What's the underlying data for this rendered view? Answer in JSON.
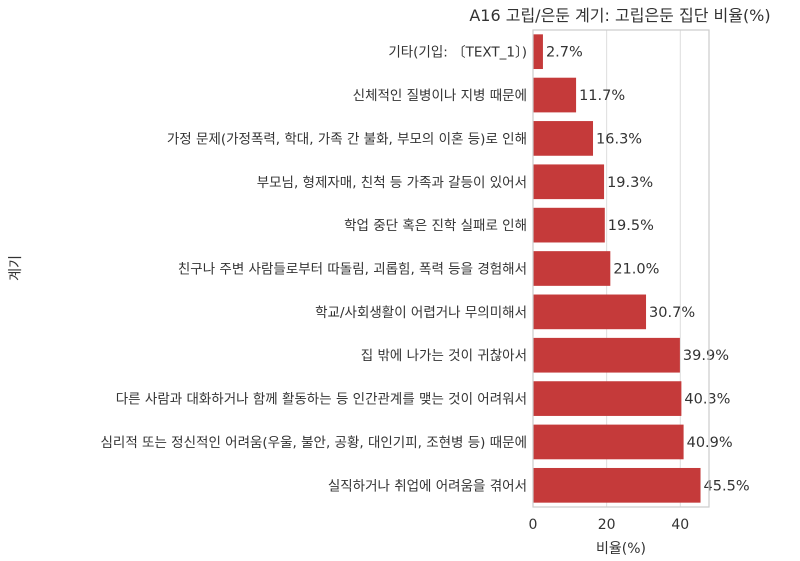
{
  "chart_data": {
    "type": "bar",
    "orientation": "horizontal",
    "title": "A16 고립/은둔 계기: 고립은둔 집단 비율(%)",
    "xlabel": "비율(%)",
    "ylabel": "계기",
    "xlim": [
      0,
      47.8
    ],
    "xticks": [
      "0",
      "20",
      "40"
    ],
    "grid": true,
    "bar_color": "#c53a3a",
    "categories": [
      "기타(기입: 〔TEXT_1〕)",
      "신체적인 질병이나 지병 때문에",
      "가정 문제(가정폭력, 학대, 가족 간 불화, 부모의 이혼 등)로 인해",
      "부모님, 형제자매, 친척 등 가족과 갈등이 있어서",
      "학업 중단 혹은 진학 실패로 인해",
      "친구나 주변 사람들로부터 따돌림, 괴롭힘, 폭력 등을 경험해서",
      "학교/사회생활이 어렵거나 무의미해서",
      "집 밖에 나가는 것이 귀찮아서",
      "다른 사람과 대화하거나 함께 활동하는 등 인간관계를 맺는 것이 어려워서",
      "심리적 또는 정신적인 어려움(우울, 불안, 공황, 대인기피, 조현병 등) 때문에",
      "실직하거나 취업에 어려움을 겪어서"
    ],
    "values": [
      2.7,
      11.7,
      16.3,
      19.3,
      19.5,
      21.0,
      30.7,
      39.9,
      40.3,
      40.9,
      45.5
    ],
    "value_labels": [
      "2.7%",
      "11.7%",
      "16.3%",
      "19.3%",
      "19.5%",
      "21.0%",
      "30.7%",
      "39.9%",
      "40.3%",
      "40.9%",
      "45.5%"
    ]
  }
}
